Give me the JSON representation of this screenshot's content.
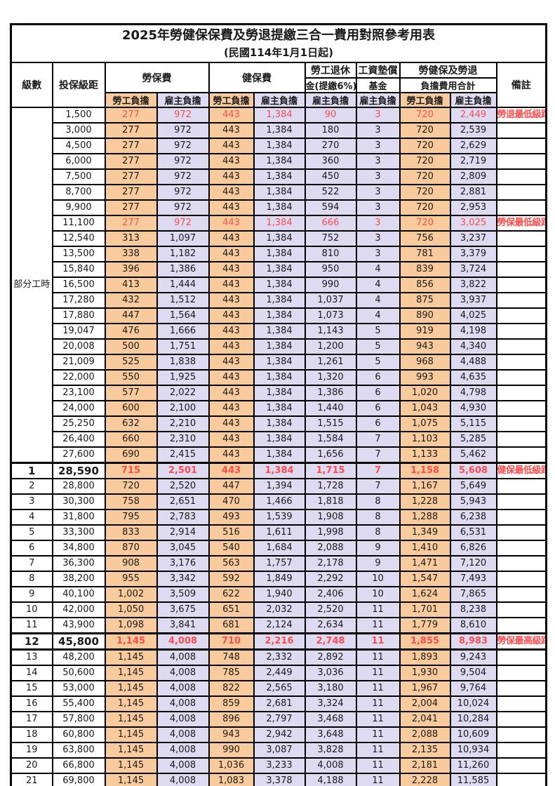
{
  "title": "2025年勞健保保費及勞退提繳三合一費用對照參考用表",
  "subtitle": "(民國114年1月1日起)",
  "colors": {
    "employee_bg": "#F9CB9C",
    "employer_bg": "#DEDAF1",
    "highlight_red": "#FF4D4D",
    "border": "#000000"
  },
  "header": {
    "level": "級數",
    "bracket": "投保級距",
    "labor_insurance": "勞保費",
    "health_insurance": "健保費",
    "pension_line1": "勞工退休",
    "pension_line2": "金(提繳6%)",
    "wage_fund_line1": "工資墊償",
    "wage_fund_line2": "基金",
    "total_line1": "勞健保及勞退",
    "total_line2": "負擔費用合計",
    "remark": "備註",
    "employee": "勞工負擔",
    "employer": "雇主負擔"
  },
  "table": {
    "part_time_label": "部分工時",
    "part_time_rowspan": 23,
    "rows": [
      {
        "level": "",
        "bracket": "1,500",
        "li_emp": "277",
        "li_er": "972",
        "hi_emp": "443",
        "hi_er": "1,384",
        "pension": "90",
        "fund": "3",
        "tot_emp": "720",
        "tot_er": "2,449",
        "remark": "勞退最低級距",
        "red": true,
        "bold": false
      },
      {
        "level": "",
        "bracket": "3,000",
        "li_emp": "277",
        "li_er": "972",
        "hi_emp": "443",
        "hi_er": "1,384",
        "pension": "180",
        "fund": "3",
        "tot_emp": "720",
        "tot_er": "2,539",
        "remark": "",
        "red": false,
        "bold": false
      },
      {
        "level": "",
        "bracket": "4,500",
        "li_emp": "277",
        "li_er": "972",
        "hi_emp": "443",
        "hi_er": "1,384",
        "pension": "270",
        "fund": "3",
        "tot_emp": "720",
        "tot_er": "2,629",
        "remark": "",
        "red": false,
        "bold": false
      },
      {
        "level": "",
        "bracket": "6,000",
        "li_emp": "277",
        "li_er": "972",
        "hi_emp": "443",
        "hi_er": "1,384",
        "pension": "360",
        "fund": "3",
        "tot_emp": "720",
        "tot_er": "2,719",
        "remark": "",
        "red": false,
        "bold": false
      },
      {
        "level": "",
        "bracket": "7,500",
        "li_emp": "277",
        "li_er": "972",
        "hi_emp": "443",
        "hi_er": "1,384",
        "pension": "450",
        "fund": "3",
        "tot_emp": "720",
        "tot_er": "2,809",
        "remark": "",
        "red": false,
        "bold": false
      },
      {
        "level": "",
        "bracket": "8,700",
        "li_emp": "277",
        "li_er": "972",
        "hi_emp": "443",
        "hi_er": "1,384",
        "pension": "522",
        "fund": "3",
        "tot_emp": "720",
        "tot_er": "2,881",
        "remark": "",
        "red": false,
        "bold": false
      },
      {
        "level": "",
        "bracket": "9,900",
        "li_emp": "277",
        "li_er": "972",
        "hi_emp": "443",
        "hi_er": "1,384",
        "pension": "594",
        "fund": "3",
        "tot_emp": "720",
        "tot_er": "2,953",
        "remark": "",
        "red": false,
        "bold": false
      },
      {
        "level": "",
        "bracket": "11,100",
        "li_emp": "277",
        "li_er": "972",
        "hi_emp": "443",
        "hi_er": "1,384",
        "pension": "666",
        "fund": "3",
        "tot_emp": "720",
        "tot_er": "3,025",
        "remark": "勞保最低級距",
        "red": true,
        "bold": false
      },
      {
        "level": "",
        "bracket": "12,540",
        "li_emp": "313",
        "li_er": "1,097",
        "hi_emp": "443",
        "hi_er": "1,384",
        "pension": "752",
        "fund": "3",
        "tot_emp": "756",
        "tot_er": "3,237",
        "remark": "",
        "red": false,
        "bold": false
      },
      {
        "level": "",
        "bracket": "13,500",
        "li_emp": "338",
        "li_er": "1,182",
        "hi_emp": "443",
        "hi_er": "1,384",
        "pension": "810",
        "fund": "3",
        "tot_emp": "781",
        "tot_er": "3,379",
        "remark": "",
        "red": false,
        "bold": false
      },
      {
        "level": "",
        "bracket": "15,840",
        "li_emp": "396",
        "li_er": "1,386",
        "hi_emp": "443",
        "hi_er": "1,384",
        "pension": "950",
        "fund": "4",
        "tot_emp": "839",
        "tot_er": "3,724",
        "remark": "",
        "red": false,
        "bold": false
      },
      {
        "level": "",
        "bracket": "16,500",
        "li_emp": "413",
        "li_er": "1,444",
        "hi_emp": "443",
        "hi_er": "1,384",
        "pension": "990",
        "fund": "4",
        "tot_emp": "856",
        "tot_er": "3,822",
        "remark": "",
        "red": false,
        "bold": false
      },
      {
        "level": "",
        "bracket": "17,280",
        "li_emp": "432",
        "li_er": "1,512",
        "hi_emp": "443",
        "hi_er": "1,384",
        "pension": "1,037",
        "fund": "4",
        "tot_emp": "875",
        "tot_er": "3,937",
        "remark": "",
        "red": false,
        "bold": false
      },
      {
        "level": "",
        "bracket": "17,880",
        "li_emp": "447",
        "li_er": "1,564",
        "hi_emp": "443",
        "hi_er": "1,384",
        "pension": "1,073",
        "fund": "4",
        "tot_emp": "890",
        "tot_er": "4,025",
        "remark": "",
        "red": false,
        "bold": false
      },
      {
        "level": "",
        "bracket": "19,047",
        "li_emp": "476",
        "li_er": "1,666",
        "hi_emp": "443",
        "hi_er": "1,384",
        "pension": "1,143",
        "fund": "5",
        "tot_emp": "919",
        "tot_er": "4,198",
        "remark": "",
        "red": false,
        "bold": false
      },
      {
        "level": "",
        "bracket": "20,008",
        "li_emp": "500",
        "li_er": "1,751",
        "hi_emp": "443",
        "hi_er": "1,384",
        "pension": "1,200",
        "fund": "5",
        "tot_emp": "943",
        "tot_er": "4,340",
        "remark": "",
        "red": false,
        "bold": false
      },
      {
        "level": "",
        "bracket": "21,009",
        "li_emp": "525",
        "li_er": "1,838",
        "hi_emp": "443",
        "hi_er": "1,384",
        "pension": "1,261",
        "fund": "5",
        "tot_emp": "968",
        "tot_er": "4,488",
        "remark": "",
        "red": false,
        "bold": false
      },
      {
        "level": "",
        "bracket": "22,000",
        "li_emp": "550",
        "li_er": "1,925",
        "hi_emp": "443",
        "hi_er": "1,384",
        "pension": "1,320",
        "fund": "6",
        "tot_emp": "993",
        "tot_er": "4,635",
        "remark": "",
        "red": false,
        "bold": false
      },
      {
        "level": "",
        "bracket": "23,100",
        "li_emp": "577",
        "li_er": "2,022",
        "hi_emp": "443",
        "hi_er": "1,384",
        "pension": "1,386",
        "fund": "6",
        "tot_emp": "1,020",
        "tot_er": "4,798",
        "remark": "",
        "red": false,
        "bold": false
      },
      {
        "level": "",
        "bracket": "24,000",
        "li_emp": "600",
        "li_er": "2,100",
        "hi_emp": "443",
        "hi_er": "1,384",
        "pension": "1,440",
        "fund": "6",
        "tot_emp": "1,043",
        "tot_er": "4,930",
        "remark": "",
        "red": false,
        "bold": false
      },
      {
        "level": "",
        "bracket": "25,250",
        "li_emp": "632",
        "li_er": "2,210",
        "hi_emp": "443",
        "hi_er": "1,384",
        "pension": "1,515",
        "fund": "6",
        "tot_emp": "1,075",
        "tot_er": "5,115",
        "remark": "",
        "red": false,
        "bold": false
      },
      {
        "level": "",
        "bracket": "26,400",
        "li_emp": "660",
        "li_er": "2,310",
        "hi_emp": "443",
        "hi_er": "1,384",
        "pension": "1,584",
        "fund": "7",
        "tot_emp": "1,103",
        "tot_er": "5,285",
        "remark": "",
        "red": false,
        "bold": false
      },
      {
        "level": "",
        "bracket": "27,600",
        "li_emp": "690",
        "li_er": "2,415",
        "hi_emp": "443",
        "hi_er": "1,384",
        "pension": "1,656",
        "fund": "7",
        "tot_emp": "1,133",
        "tot_er": "5,462",
        "remark": "",
        "red": false,
        "bold": false
      },
      {
        "level": "1",
        "bracket": "28,590",
        "li_emp": "715",
        "li_er": "2,501",
        "hi_emp": "443",
        "hi_er": "1,384",
        "pension": "1,715",
        "fund": "7",
        "tot_emp": "1,158",
        "tot_er": "5,608",
        "remark": "健保最低級距",
        "red": true,
        "bold": true,
        "thick_top": true
      },
      {
        "level": "2",
        "bracket": "28,800",
        "li_emp": "720",
        "li_er": "2,520",
        "hi_emp": "447",
        "hi_er": "1,394",
        "pension": "1,728",
        "fund": "7",
        "tot_emp": "1,167",
        "tot_er": "5,649",
        "remark": "",
        "red": false,
        "bold": false
      },
      {
        "level": "3",
        "bracket": "30,300",
        "li_emp": "758",
        "li_er": "2,651",
        "hi_emp": "470",
        "hi_er": "1,466",
        "pension": "1,818",
        "fund": "8",
        "tot_emp": "1,228",
        "tot_er": "5,943",
        "remark": "",
        "red": false,
        "bold": false
      },
      {
        "level": "4",
        "bracket": "31,800",
        "li_emp": "795",
        "li_er": "2,783",
        "hi_emp": "493",
        "hi_er": "1,539",
        "pension": "1,908",
        "fund": "8",
        "tot_emp": "1,288",
        "tot_er": "6,238",
        "remark": "",
        "red": false,
        "bold": false
      },
      {
        "level": "5",
        "bracket": "33,300",
        "li_emp": "833",
        "li_er": "2,914",
        "hi_emp": "516",
        "hi_er": "1,611",
        "pension": "1,998",
        "fund": "8",
        "tot_emp": "1,349",
        "tot_er": "6,531",
        "remark": "",
        "red": false,
        "bold": false
      },
      {
        "level": "6",
        "bracket": "34,800",
        "li_emp": "870",
        "li_er": "3,045",
        "hi_emp": "540",
        "hi_er": "1,684",
        "pension": "2,088",
        "fund": "9",
        "tot_emp": "1,410",
        "tot_er": "6,826",
        "remark": "",
        "red": false,
        "bold": false
      },
      {
        "level": "7",
        "bracket": "36,300",
        "li_emp": "908",
        "li_er": "3,176",
        "hi_emp": "563",
        "hi_er": "1,757",
        "pension": "2,178",
        "fund": "9",
        "tot_emp": "1,471",
        "tot_er": "7,120",
        "remark": "",
        "red": false,
        "bold": false
      },
      {
        "level": "8",
        "bracket": "38,200",
        "li_emp": "955",
        "li_er": "3,342",
        "hi_emp": "592",
        "hi_er": "1,849",
        "pension": "2,292",
        "fund": "10",
        "tot_emp": "1,547",
        "tot_er": "7,493",
        "remark": "",
        "red": false,
        "bold": false
      },
      {
        "level": "9",
        "bracket": "40,100",
        "li_emp": "1,002",
        "li_er": "3,509",
        "hi_emp": "622",
        "hi_er": "1,940",
        "pension": "2,406",
        "fund": "10",
        "tot_emp": "1,624",
        "tot_er": "7,865",
        "remark": "",
        "red": false,
        "bold": false
      },
      {
        "level": "10",
        "bracket": "42,000",
        "li_emp": "1,050",
        "li_er": "3,675",
        "hi_emp": "651",
        "hi_er": "2,032",
        "pension": "2,520",
        "fund": "11",
        "tot_emp": "1,701",
        "tot_er": "8,238",
        "remark": "",
        "red": false,
        "bold": false
      },
      {
        "level": "11",
        "bracket": "43,900",
        "li_emp": "1,098",
        "li_er": "3,841",
        "hi_emp": "681",
        "hi_er": "2,124",
        "pension": "2,634",
        "fund": "11",
        "tot_emp": "1,779",
        "tot_er": "8,610",
        "remark": "",
        "red": false,
        "bold": false
      },
      {
        "level": "12",
        "bracket": "45,800",
        "li_emp": "1,145",
        "li_er": "4,008",
        "hi_emp": "710",
        "hi_er": "2,216",
        "pension": "2,748",
        "fund": "11",
        "tot_emp": "1,855",
        "tot_er": "8,983",
        "remark": "勞保最高級距",
        "red": true,
        "bold": true,
        "thick_top": true,
        "thick_bottom": true
      },
      {
        "level": "13",
        "bracket": "48,200",
        "li_emp": "1,145",
        "li_er": "4,008",
        "hi_emp": "748",
        "hi_er": "2,332",
        "pension": "2,892",
        "fund": "11",
        "tot_emp": "1,893",
        "tot_er": "9,243",
        "remark": "",
        "red": false,
        "bold": false
      },
      {
        "level": "14",
        "bracket": "50,600",
        "li_emp": "1,145",
        "li_er": "4,008",
        "hi_emp": "785",
        "hi_er": "2,449",
        "pension": "3,036",
        "fund": "11",
        "tot_emp": "1,930",
        "tot_er": "9,504",
        "remark": "",
        "red": false,
        "bold": false
      },
      {
        "level": "15",
        "bracket": "53,000",
        "li_emp": "1,145",
        "li_er": "4,008",
        "hi_emp": "822",
        "hi_er": "2,565",
        "pension": "3,180",
        "fund": "11",
        "tot_emp": "1,967",
        "tot_er": "9,764",
        "remark": "",
        "red": false,
        "bold": false
      },
      {
        "level": "16",
        "bracket": "55,400",
        "li_emp": "1,145",
        "li_er": "4,008",
        "hi_emp": "859",
        "hi_er": "2,681",
        "pension": "3,324",
        "fund": "11",
        "tot_emp": "2,004",
        "tot_er": "10,024",
        "remark": "",
        "red": false,
        "bold": false
      },
      {
        "level": "17",
        "bracket": "57,800",
        "li_emp": "1,145",
        "li_er": "4,008",
        "hi_emp": "896",
        "hi_er": "2,797",
        "pension": "3,468",
        "fund": "11",
        "tot_emp": "2,041",
        "tot_er": "10,284",
        "remark": "",
        "red": false,
        "bold": false
      },
      {
        "level": "18",
        "bracket": "60,800",
        "li_emp": "1,145",
        "li_er": "4,008",
        "hi_emp": "943",
        "hi_er": "2,942",
        "pension": "3,648",
        "fund": "11",
        "tot_emp": "2,088",
        "tot_er": "10,609",
        "remark": "",
        "red": false,
        "bold": false
      },
      {
        "level": "19",
        "bracket": "63,800",
        "li_emp": "1,145",
        "li_er": "4,008",
        "hi_emp": "990",
        "hi_er": "3,087",
        "pension": "3,828",
        "fund": "11",
        "tot_emp": "2,135",
        "tot_er": "10,934",
        "remark": "",
        "red": false,
        "bold": false
      },
      {
        "level": "20",
        "bracket": "66,800",
        "li_emp": "1,145",
        "li_er": "4,008",
        "hi_emp": "1,036",
        "hi_er": "3,233",
        "pension": "4,008",
        "fund": "11",
        "tot_emp": "2,181",
        "tot_er": "11,260",
        "remark": "",
        "red": false,
        "bold": false
      },
      {
        "level": "21",
        "bracket": "69,800",
        "li_emp": "1,145",
        "li_er": "4,008",
        "hi_emp": "1,083",
        "hi_er": "3,378",
        "pension": "4,188",
        "fund": "11",
        "tot_emp": "2,228",
        "tot_er": "11,585",
        "remark": "",
        "red": false,
        "bold": false
      }
    ]
  }
}
